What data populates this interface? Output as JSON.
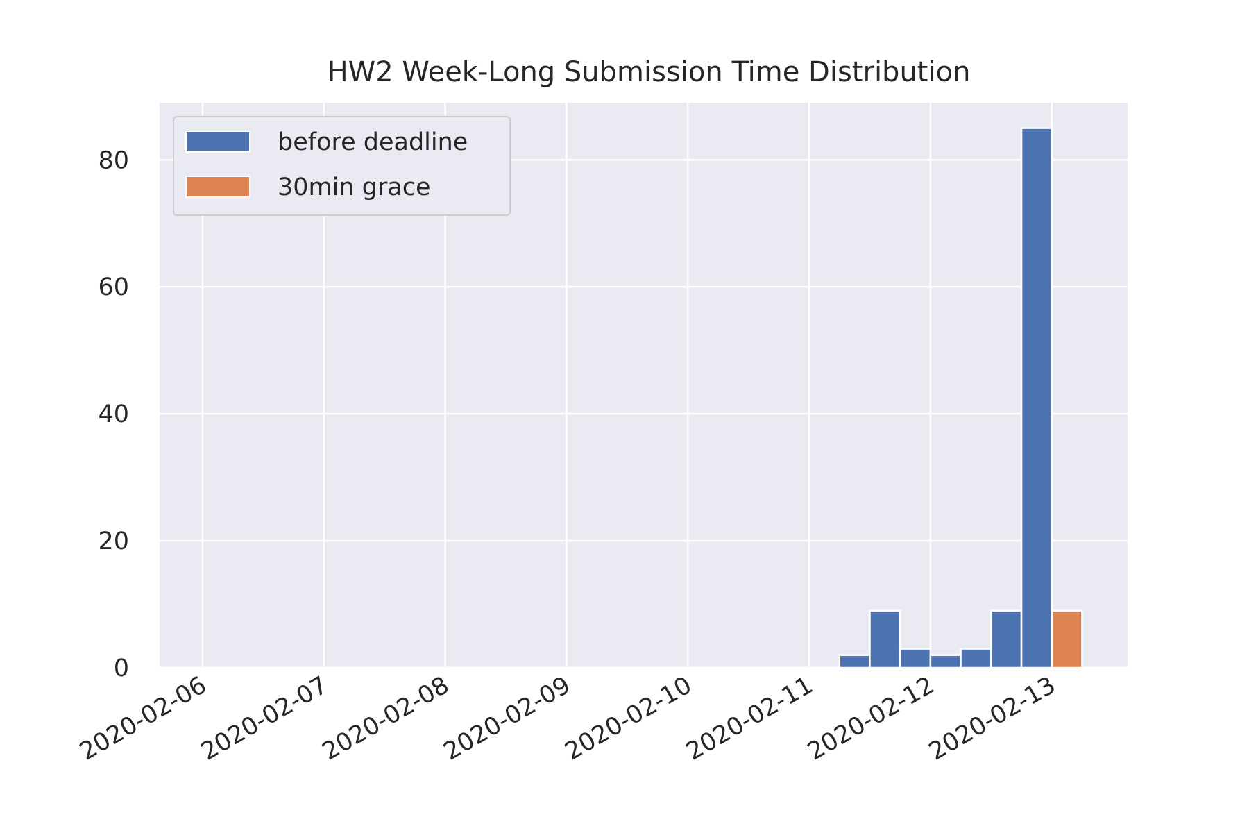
{
  "chart_data": {
    "type": "bar",
    "title": "HW2 Week-Long Submission Time Distribution",
    "xlabel": "",
    "ylabel": "",
    "x_tick_labels": [
      "2020-02-06",
      "2020-02-07",
      "2020-02-08",
      "2020-02-09",
      "2020-02-10",
      "2020-02-11",
      "2020-02-12",
      "2020-02-13"
    ],
    "y_ticks": [
      0,
      20,
      40,
      60,
      80
    ],
    "xlim": [
      "2020-02-05 15:30",
      "2020-02-13 15:00"
    ],
    "ylim": [
      0,
      89
    ],
    "grid": true,
    "legend_position": "top-left",
    "bin_width_hours": 6,
    "series": [
      {
        "name": "before deadline",
        "color": "#4c72b0",
        "bins": [
          {
            "start": "2020-02-11 06:00",
            "value": 2
          },
          {
            "start": "2020-02-11 12:00",
            "value": 9
          },
          {
            "start": "2020-02-11 18:00",
            "value": 3
          },
          {
            "start": "2020-02-12 00:00",
            "value": 2
          },
          {
            "start": "2020-02-12 06:00",
            "value": 3
          },
          {
            "start": "2020-02-12 12:00",
            "value": 9
          },
          {
            "start": "2020-02-12 18:00",
            "value": 85
          }
        ]
      },
      {
        "name": "30min grace",
        "color": "#dd8452",
        "bins": [
          {
            "start": "2020-02-13 00:00",
            "value": 9
          }
        ]
      }
    ]
  }
}
